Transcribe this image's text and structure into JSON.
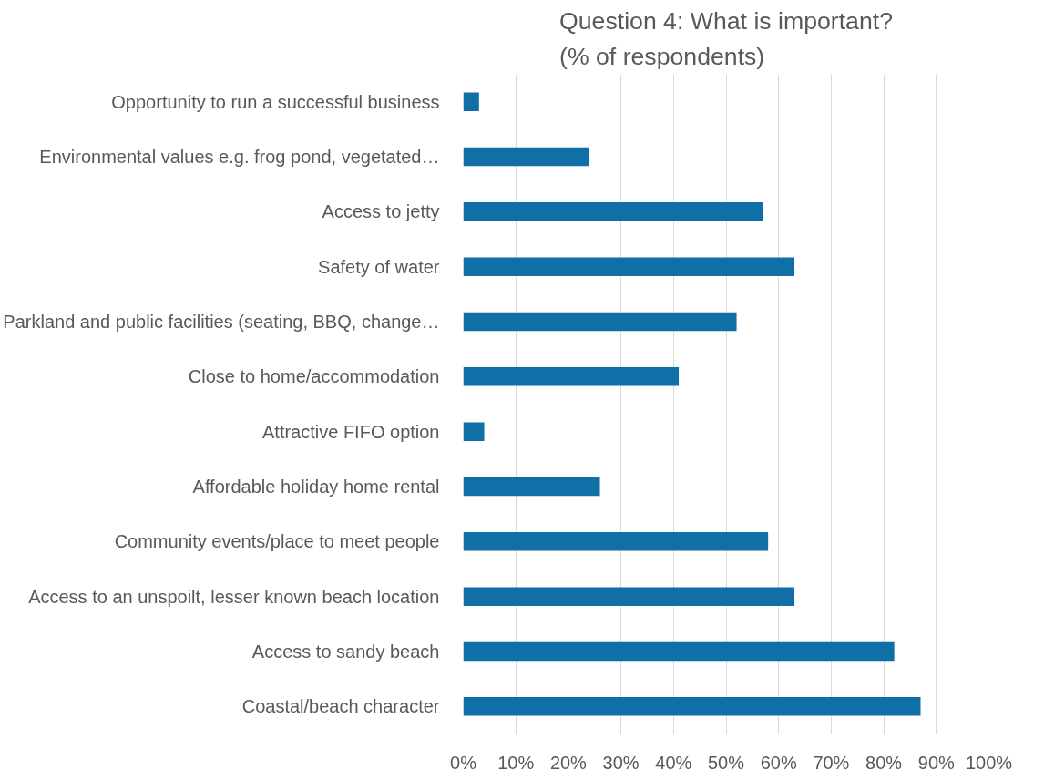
{
  "chart_data": {
    "type": "bar",
    "orientation": "horizontal",
    "title": "Question 4: What is important?\n(% of respondents)",
    "categories": [
      "Opportunity to run a successful business",
      "Environmental values e.g. frog pond, vegetated…",
      "Access to jetty",
      "Safety of water",
      "Parkland and public facilities (seating, BBQ, change…",
      "Close to home/accommodation",
      "Attractive FIFO option",
      "Affordable holiday home rental",
      "Community events/place to meet people",
      "Access to an unspoilt, lesser known beach location",
      "Access to sandy beach",
      "Coastal/beach character"
    ],
    "values": [
      3,
      24,
      57,
      63,
      52,
      41,
      4,
      26,
      58,
      63,
      82,
      87
    ],
    "color": "#0f6fa6",
    "xlim": [
      0,
      100
    ],
    "xticks": [
      {
        "value": 0,
        "label": "0%"
      },
      {
        "value": 10,
        "label": "10%"
      },
      {
        "value": 20,
        "label": "20%"
      },
      {
        "value": 30,
        "label": "30%"
      },
      {
        "value": 40,
        "label": "40%"
      },
      {
        "value": 50,
        "label": "50%"
      },
      {
        "value": 60,
        "label": "60%"
      },
      {
        "value": 70,
        "label": "70%"
      },
      {
        "value": 80,
        "label": "80%"
      },
      {
        "value": 90,
        "label": "90%"
      },
      {
        "value": 100,
        "label": "100%"
      }
    ],
    "grid": "x"
  }
}
